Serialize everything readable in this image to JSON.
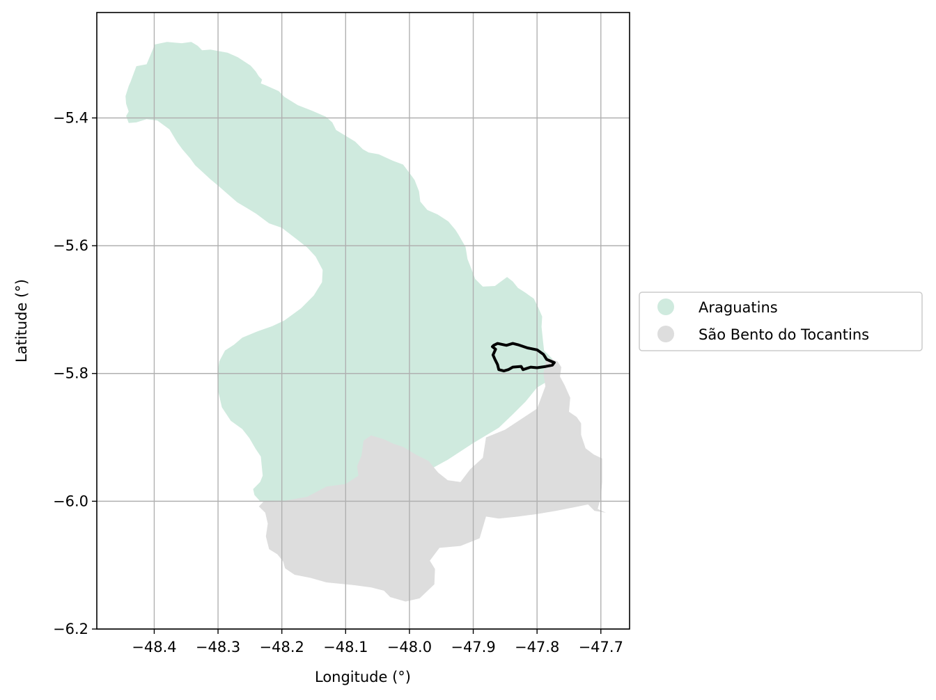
{
  "chart_data": {
    "type": "map",
    "xlabel": "Longitude (°)",
    "ylabel": "Latitude (°)",
    "xlim": [
      -48.49,
      -47.655
    ],
    "ylim": [
      -6.2,
      -5.235
    ],
    "x_ticks": [
      -48.4,
      -48.3,
      -48.2,
      -48.1,
      -48.0,
      -47.9,
      -47.8,
      -47.7
    ],
    "x_tick_labels": [
      "−48.4",
      "−48.3",
      "−48.2",
      "−48.1",
      "−48.0",
      "−47.9",
      "−47.8",
      "−47.7"
    ],
    "y_ticks": [
      -5.4,
      -5.6,
      -5.8,
      -6.0,
      -6.2
    ],
    "y_tick_labels": [
      "−5.4",
      "−5.6",
      "−5.8",
      "−6.0",
      "−6.2"
    ],
    "grid": true,
    "legend_position": "right, outside",
    "regions": [
      {
        "name": "Araguatins",
        "color": "#cfeade",
        "coords": [
          [
            -48.437,
            -5.343
          ],
          [
            -48.428,
            -5.319
          ],
          [
            -48.412,
            -5.316
          ],
          [
            -48.399,
            -5.285
          ],
          [
            -48.38,
            -5.281
          ],
          [
            -48.357,
            -5.283
          ],
          [
            -48.342,
            -5.281
          ],
          [
            -48.332,
            -5.287
          ],
          [
            -48.325,
            -5.294
          ],
          [
            -48.312,
            -5.293
          ],
          [
            -48.285,
            -5.298
          ],
          [
            -48.269,
            -5.305
          ],
          [
            -48.249,
            -5.318
          ],
          [
            -48.241,
            -5.327
          ],
          [
            -48.236,
            -5.335
          ],
          [
            -48.231,
            -5.34
          ],
          [
            -48.233,
            -5.346
          ],
          [
            -48.225,
            -5.349
          ],
          [
            -48.205,
            -5.358
          ],
          [
            -48.196,
            -5.367
          ],
          [
            -48.175,
            -5.38
          ],
          [
            -48.152,
            -5.389
          ],
          [
            -48.131,
            -5.398
          ],
          [
            -48.121,
            -5.407
          ],
          [
            -48.115,
            -5.419
          ],
          [
            -48.105,
            -5.425
          ],
          [
            -48.085,
            -5.437
          ],
          [
            -48.073,
            -5.449
          ],
          [
            -48.064,
            -5.454
          ],
          [
            -48.048,
            -5.457
          ],
          [
            -48.026,
            -5.467
          ],
          [
            -48.01,
            -5.473
          ],
          [
            -48.0,
            -5.486
          ],
          [
            -47.992,
            -5.497
          ],
          [
            -47.985,
            -5.515
          ],
          [
            -47.983,
            -5.531
          ],
          [
            -47.972,
            -5.544
          ],
          [
            -47.956,
            -5.551
          ],
          [
            -47.939,
            -5.562
          ],
          [
            -47.928,
            -5.575
          ],
          [
            -47.923,
            -5.583
          ],
          [
            -47.912,
            -5.602
          ],
          [
            -47.909,
            -5.621
          ],
          [
            -47.903,
            -5.636
          ],
          [
            -47.897,
            -5.652
          ],
          [
            -47.885,
            -5.664
          ],
          [
            -47.866,
            -5.663
          ],
          [
            -47.858,
            -5.657
          ],
          [
            -47.847,
            -5.649
          ],
          [
            -47.838,
            -5.656
          ],
          [
            -47.83,
            -5.666
          ],
          [
            -47.819,
            -5.673
          ],
          [
            -47.805,
            -5.683
          ],
          [
            -47.798,
            -5.697
          ],
          [
            -47.792,
            -5.711
          ],
          [
            -47.793,
            -5.727
          ],
          [
            -47.791,
            -5.746
          ],
          [
            -47.789,
            -5.764
          ],
          [
            -47.776,
            -5.777
          ],
          [
            -47.771,
            -5.792
          ],
          [
            -47.785,
            -5.813
          ],
          [
            -47.8,
            -5.822
          ],
          [
            -47.818,
            -5.844
          ],
          [
            -47.838,
            -5.864
          ],
          [
            -47.86,
            -5.885
          ],
          [
            -47.9,
            -5.909
          ],
          [
            -47.94,
            -5.935
          ],
          [
            -47.98,
            -5.957
          ],
          [
            -48.02,
            -5.97
          ],
          [
            -48.06,
            -5.977
          ],
          [
            -48.1,
            -5.984
          ],
          [
            -48.16,
            -5.995
          ],
          [
            -48.22,
            -6.003
          ],
          [
            -48.234,
            -6.0
          ],
          [
            -48.243,
            -5.99
          ],
          [
            -48.245,
            -5.981
          ],
          [
            -48.234,
            -5.97
          ],
          [
            -48.23,
            -5.96
          ],
          [
            -48.233,
            -5.93
          ],
          [
            -48.241,
            -5.918
          ],
          [
            -48.251,
            -5.901
          ],
          [
            -48.262,
            -5.887
          ],
          [
            -48.28,
            -5.874
          ],
          [
            -48.294,
            -5.853
          ],
          [
            -48.3,
            -5.827
          ],
          [
            -48.301,
            -5.801
          ],
          [
            -48.298,
            -5.781
          ],
          [
            -48.289,
            -5.764
          ],
          [
            -48.275,
            -5.755
          ],
          [
            -48.262,
            -5.744
          ],
          [
            -48.238,
            -5.734
          ],
          [
            -48.215,
            -5.726
          ],
          [
            -48.196,
            -5.717
          ],
          [
            -48.17,
            -5.698
          ],
          [
            -48.15,
            -5.678
          ],
          [
            -48.137,
            -5.657
          ],
          [
            -48.136,
            -5.638
          ],
          [
            -48.147,
            -5.617
          ],
          [
            -48.16,
            -5.603
          ],
          [
            -48.174,
            -5.592
          ],
          [
            -48.2,
            -5.572
          ],
          [
            -48.22,
            -5.565
          ],
          [
            -48.24,
            -5.55
          ],
          [
            -48.255,
            -5.541
          ],
          [
            -48.27,
            -5.532
          ],
          [
            -48.285,
            -5.519
          ],
          [
            -48.3,
            -5.506
          ],
          [
            -48.312,
            -5.496
          ],
          [
            -48.325,
            -5.484
          ],
          [
            -48.336,
            -5.474
          ],
          [
            -48.344,
            -5.463
          ],
          [
            -48.356,
            -5.449
          ],
          [
            -48.364,
            -5.438
          ],
          [
            -48.376,
            -5.418
          ],
          [
            -48.395,
            -5.404
          ],
          [
            -48.412,
            -5.402
          ],
          [
            -48.428,
            -5.407
          ],
          [
            -48.44,
            -5.408
          ],
          [
            -48.444,
            -5.397
          ],
          [
            -48.44,
            -5.39
          ],
          [
            -48.444,
            -5.378
          ],
          [
            -48.445,
            -5.366
          ],
          [
            -48.44,
            -5.35
          ]
        ]
      },
      {
        "name": "São Bento do Tocantins",
        "color": "#dddddd",
        "coords": [
          [
            -47.785,
            -5.775
          ],
          [
            -47.768,
            -5.781
          ],
          [
            -47.762,
            -5.79
          ],
          [
            -47.764,
            -5.805
          ],
          [
            -47.757,
            -5.818
          ],
          [
            -47.748,
            -5.838
          ],
          [
            -47.75,
            -5.86
          ],
          [
            -47.738,
            -5.868
          ],
          [
            -47.731,
            -5.878
          ],
          [
            -47.731,
            -5.896
          ],
          [
            -47.724,
            -5.917
          ],
          [
            -47.711,
            -5.927
          ],
          [
            -47.698,
            -5.933
          ],
          [
            -47.698,
            -5.97
          ],
          [
            -47.7,
            -5.994
          ],
          [
            -47.705,
            -6.012
          ],
          [
            -47.692,
            -6.018
          ],
          [
            -47.71,
            -6.015
          ],
          [
            -47.72,
            -6.005
          ],
          [
            -47.745,
            -6.01
          ],
          [
            -47.77,
            -6.015
          ],
          [
            -47.8,
            -6.02
          ],
          [
            -47.83,
            -6.024
          ],
          [
            -47.86,
            -6.027
          ],
          [
            -47.88,
            -6.024
          ],
          [
            -47.89,
            -6.058
          ],
          [
            -47.92,
            -6.07
          ],
          [
            -47.953,
            -6.073
          ],
          [
            -47.968,
            -6.093
          ],
          [
            -47.96,
            -6.106
          ],
          [
            -47.961,
            -6.13
          ],
          [
            -47.984,
            -6.152
          ],
          [
            -48.006,
            -6.157
          ],
          [
            -48.03,
            -6.15
          ],
          [
            -48.04,
            -6.14
          ],
          [
            -48.06,
            -6.135
          ],
          [
            -48.09,
            -6.131
          ],
          [
            -48.13,
            -6.127
          ],
          [
            -48.155,
            -6.12
          ],
          [
            -48.18,
            -6.115
          ],
          [
            -48.195,
            -6.105
          ],
          [
            -48.198,
            -6.094
          ],
          [
            -48.207,
            -6.083
          ],
          [
            -48.22,
            -6.075
          ],
          [
            -48.225,
            -6.055
          ],
          [
            -48.222,
            -6.035
          ],
          [
            -48.226,
            -6.018
          ],
          [
            -48.236,
            -6.008
          ],
          [
            -48.228,
            -6.0
          ],
          [
            -48.205,
            -6.001
          ],
          [
            -48.16,
            -5.993
          ],
          [
            -48.13,
            -5.977
          ],
          [
            -48.1,
            -5.973
          ],
          [
            -48.08,
            -5.96
          ],
          [
            -48.082,
            -5.945
          ],
          [
            -48.075,
            -5.928
          ],
          [
            -48.072,
            -5.905
          ],
          [
            -48.06,
            -5.897
          ],
          [
            -48.04,
            -5.903
          ],
          [
            -48.025,
            -5.91
          ],
          [
            -48.01,
            -5.915
          ],
          [
            -47.99,
            -5.927
          ],
          [
            -47.97,
            -5.937
          ],
          [
            -47.955,
            -5.955
          ],
          [
            -47.94,
            -5.967
          ],
          [
            -47.92,
            -5.97
          ],
          [
            -47.905,
            -5.95
          ],
          [
            -47.885,
            -5.932
          ],
          [
            -47.88,
            -5.9
          ],
          [
            -47.85,
            -5.888
          ],
          [
            -47.8,
            -5.855
          ],
          [
            -47.787,
            -5.82
          ],
          [
            -47.79,
            -5.8
          ]
        ]
      }
    ],
    "highlighted_area": {
      "stroke": "#000000",
      "coords": [
        [
          -47.868,
          -5.756
        ],
        [
          -47.862,
          -5.753
        ],
        [
          -47.848,
          -5.756
        ],
        [
          -47.838,
          -5.753
        ],
        [
          -47.83,
          -5.755
        ],
        [
          -47.815,
          -5.76
        ],
        [
          -47.8,
          -5.763
        ],
        [
          -47.79,
          -5.77
        ],
        [
          -47.785,
          -5.778
        ],
        [
          -47.773,
          -5.783
        ],
        [
          -47.776,
          -5.787
        ],
        [
          -47.786,
          -5.789
        ],
        [
          -47.8,
          -5.791
        ],
        [
          -47.81,
          -5.79
        ],
        [
          -47.822,
          -5.794
        ],
        [
          -47.825,
          -5.789
        ],
        [
          -47.838,
          -5.79
        ],
        [
          -47.845,
          -5.794
        ],
        [
          -47.852,
          -5.796
        ],
        [
          -47.86,
          -5.794
        ],
        [
          -47.862,
          -5.786
        ],
        [
          -47.866,
          -5.778
        ],
        [
          -47.869,
          -5.771
        ],
        [
          -47.865,
          -5.762
        ],
        [
          -47.87,
          -5.758
        ]
      ]
    }
  },
  "legend": {
    "items": [
      {
        "label": "Araguatins",
        "color": "#cfeade"
      },
      {
        "label": "São Bento do Tocantins",
        "color": "#dddddd"
      }
    ]
  }
}
